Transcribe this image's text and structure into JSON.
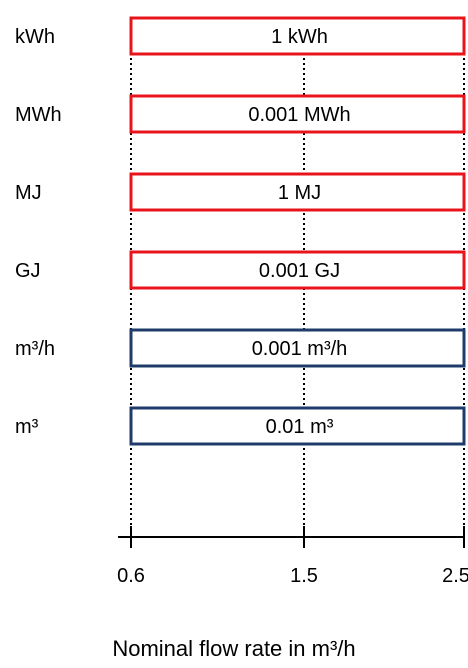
{
  "rows": [
    {
      "label": "kWh",
      "value": "1 kWh",
      "color": "#e8141c"
    },
    {
      "label": "MWh",
      "value": "0.001 MWh",
      "color": "#e8141c"
    },
    {
      "label": "MJ",
      "value": "1 MJ",
      "color": "#e8141c"
    },
    {
      "label": "GJ",
      "value": "0.001 GJ",
      "color": "#e8141c"
    },
    {
      "label": "m³/h",
      "value": "0.001 m³/h",
      "color": "#1f3b6b"
    },
    {
      "label": "m³",
      "value": "0.01 m³",
      "color": "#1f3b6b"
    }
  ],
  "axis": {
    "ticks": [
      "0.6",
      "1.5",
      "2.5"
    ],
    "title": "Nominal flow rate in m³/h"
  }
}
